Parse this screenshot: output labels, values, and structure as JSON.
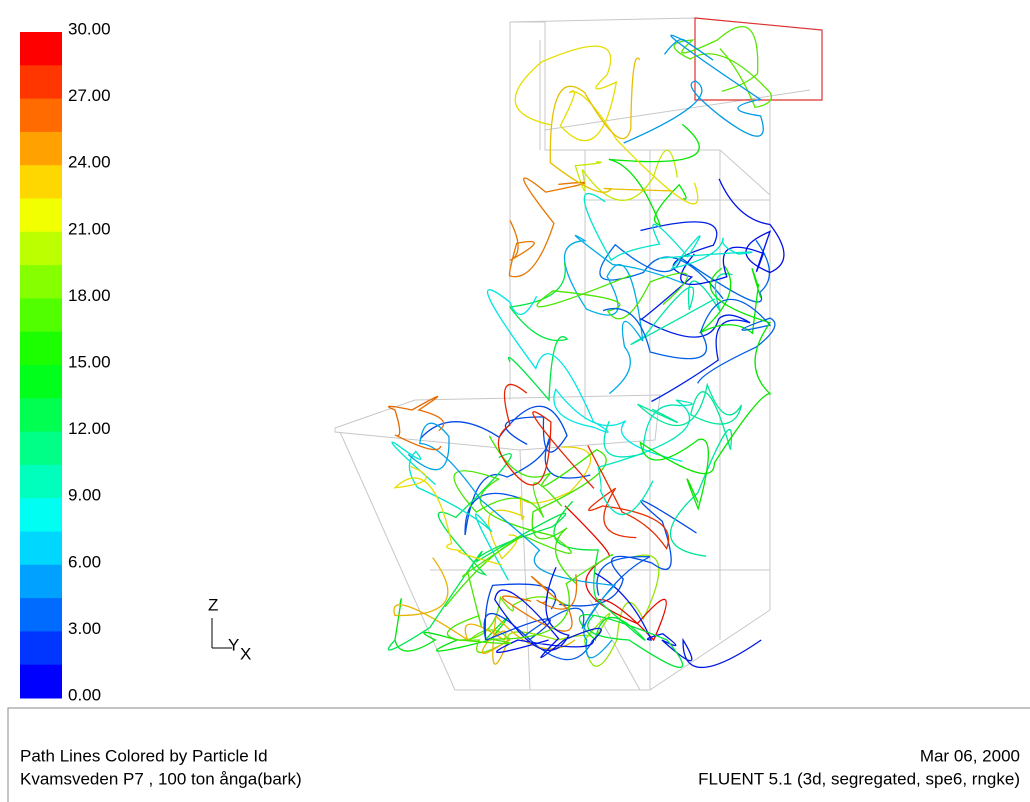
{
  "colorbar": {
    "labels": [
      "30.00",
      "27.00",
      "24.00",
      "21.00",
      "18.00",
      "15.00",
      "12.00",
      "9.00",
      "6.00",
      "3.00",
      "0.00"
    ]
  },
  "triad": {
    "z": "Z",
    "y": "Y",
    "x": "X"
  },
  "footer": {
    "left": [
      "Path Lines Colored by Particle Id",
      "Kvamsveden P7 , 100 ton ånga(bark)"
    ],
    "right": [
      "Mar 06, 2000",
      "FLUENT 5.1 (3d, segregated, spe6, rngke)"
    ]
  }
}
